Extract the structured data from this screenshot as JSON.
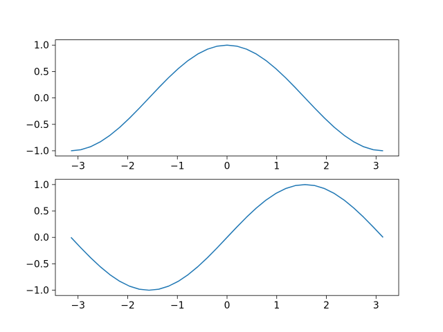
{
  "chart_data": [
    {
      "type": "line",
      "title": "",
      "xlabel": "",
      "ylabel": "",
      "xlim": [
        -3.456,
        3.456
      ],
      "ylim": [
        -1.1,
        1.1
      ],
      "grid": false,
      "xticks": [
        -3,
        -2,
        -1,
        0,
        1,
        2,
        3
      ],
      "xtick_labels": [
        "−3",
        "−2",
        "−1",
        "0",
        "1",
        "2",
        "3"
      ],
      "yticks": [
        -1.0,
        -0.5,
        0.0,
        0.5,
        1.0
      ],
      "ytick_labels": [
        "−1.0",
        "−0.5",
        "0.0",
        "0.5",
        "1.0"
      ],
      "series": [
        {
          "color": "#1f77b4",
          "x": [
            -3.1416,
            -2.9452,
            -2.7489,
            -2.5525,
            -2.3562,
            -2.1598,
            -1.9635,
            -1.7671,
            -1.5708,
            -1.3744,
            -1.1781,
            -0.9817,
            -0.7854,
            -0.589,
            -0.3927,
            -0.1963,
            0,
            0.1963,
            0.3927,
            0.589,
            0.7854,
            0.9817,
            1.1781,
            1.3744,
            1.5708,
            1.7671,
            1.9635,
            2.1598,
            2.3562,
            2.5525,
            2.7489,
            2.9452,
            3.1416
          ],
          "y": [
            -1,
            -0.9808,
            -0.9239,
            -0.8315,
            -0.7071,
            -0.5556,
            -0.3827,
            -0.1951,
            0,
            0.1951,
            0.3827,
            0.5556,
            0.7071,
            0.8315,
            0.9239,
            0.9808,
            1,
            0.9808,
            0.9239,
            0.8315,
            0.7071,
            0.5556,
            0.3827,
            0.1951,
            0,
            -0.1951,
            -0.3827,
            -0.5556,
            -0.7071,
            -0.8315,
            -0.9239,
            -0.9808,
            -1
          ]
        }
      ]
    },
    {
      "type": "line",
      "title": "",
      "xlabel": "",
      "ylabel": "",
      "xlim": [
        -3.456,
        3.456
      ],
      "ylim": [
        -1.1,
        1.1
      ],
      "grid": false,
      "xticks": [
        -3,
        -2,
        -1,
        0,
        1,
        2,
        3
      ],
      "xtick_labels": [
        "−3",
        "−2",
        "−1",
        "0",
        "1",
        "2",
        "3"
      ],
      "yticks": [
        -1.0,
        -0.5,
        0.0,
        0.5,
        1.0
      ],
      "ytick_labels": [
        "−1.0",
        "−0.5",
        "0.0",
        "0.5",
        "1.0"
      ],
      "series": [
        {
          "color": "#1f77b4",
          "x": [
            -3.1416,
            -2.9452,
            -2.7489,
            -2.5525,
            -2.3562,
            -2.1598,
            -1.9635,
            -1.7671,
            -1.5708,
            -1.3744,
            -1.1781,
            -0.9817,
            -0.7854,
            -0.589,
            -0.3927,
            -0.1963,
            0,
            0.1963,
            0.3927,
            0.589,
            0.7854,
            0.9817,
            1.1781,
            1.3744,
            1.5708,
            1.7671,
            1.9635,
            2.1598,
            2.3562,
            2.5525,
            2.7489,
            2.9452,
            3.1416
          ],
          "y": [
            0,
            -0.1951,
            -0.3827,
            -0.5556,
            -0.7071,
            -0.8315,
            -0.9239,
            -0.9808,
            -1,
            -0.9808,
            -0.9239,
            -0.8315,
            -0.7071,
            -0.5556,
            -0.3827,
            -0.1951,
            0,
            0.1951,
            0.3827,
            0.5556,
            0.7071,
            0.8315,
            0.9239,
            0.9808,
            1,
            0.9808,
            0.9239,
            0.8315,
            0.7071,
            0.5556,
            0.3827,
            0.1951,
            0
          ]
        }
      ]
    }
  ]
}
